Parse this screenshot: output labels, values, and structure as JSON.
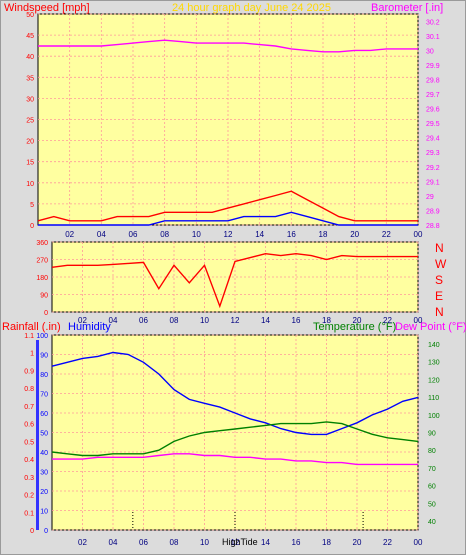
{
  "header": {
    "left_label": "Windspeed [mph]",
    "title": "24 hour graph day   June 24 2025",
    "right_label": "Barometer [.in]"
  },
  "direction_labels": [
    "N",
    "W",
    "S",
    "E",
    "N"
  ],
  "bottom_header": {
    "rain_label": "Rainfall (.in)",
    "humidity_label": "Humidity",
    "temp_label": "Temperature (°F)",
    "dew_label": "Dew Point (°F)"
  },
  "markers": {
    "high_tide_label": "HighTide"
  },
  "colors": {
    "plot_bg": "#ffffa0",
    "frame_bg": "#dcdcdc",
    "grid": "#ff9a9a",
    "wind": "#ff0000",
    "gust_blue": "#0000ff",
    "gust_green": "#00a000",
    "barometer": "#ff00ff",
    "direction": "#ff0000",
    "humidity": "#0000ff",
    "temperature": "#008000",
    "dew_point": "#ff00ff",
    "title": "#ffd800",
    "axis_text": "#ff0000"
  },
  "chart_data": [
    {
      "type": "line",
      "title": "24 hour graph day   June 24 2025",
      "x_ticks": [
        "02",
        "04",
        "06",
        "08",
        "10",
        "12",
        "14",
        "16",
        "18",
        "20",
        "22",
        "00"
      ],
      "xlim": [
        0,
        24
      ],
      "grid": true,
      "y_left": {
        "label": "Windspeed [mph]",
        "ticks": [
          "0",
          "5",
          "10",
          "15",
          "20",
          "25",
          "30",
          "35",
          "40",
          "45",
          "50"
        ],
        "ylim": [
          0,
          50
        ]
      },
      "y_right": {
        "label": "Barometer [.in]",
        "ticks": [
          "28.8",
          "28.9",
          "29",
          "29.1",
          "29.2",
          "29.3",
          "29.4",
          "29.5",
          "29.6",
          "29.7",
          "29.8",
          "29.9",
          "30",
          "30.1",
          "30.2"
        ],
        "ylim": [
          28.8,
          30.25
        ]
      },
      "series": [
        {
          "name": "Barometer",
          "axis": "right",
          "x": [
            0,
            1,
            2,
            3,
            4,
            5,
            6,
            7,
            8,
            9,
            10,
            11,
            12,
            13,
            14,
            15,
            16,
            17,
            18,
            19,
            20,
            21,
            22,
            23,
            24
          ],
          "y": [
            30.03,
            30.03,
            30.03,
            30.03,
            30.03,
            30.04,
            30.05,
            30.06,
            30.07,
            30.06,
            30.05,
            30.05,
            30.05,
            30.05,
            30.04,
            30.03,
            30.01,
            30.0,
            29.99,
            29.99,
            30.0,
            30.0,
            30.01,
            30.01,
            30.01
          ]
        },
        {
          "name": "Wind gust",
          "axis": "left",
          "x": [
            0,
            1,
            2,
            3,
            4,
            5,
            6,
            7,
            8,
            9,
            10,
            11,
            12,
            13,
            14,
            15,
            16,
            17,
            18,
            19,
            20,
            21,
            22,
            23,
            24
          ],
          "y": [
            1,
            2,
            1,
            1,
            1,
            2,
            2,
            2,
            3,
            3,
            3,
            3,
            4,
            5,
            6,
            7,
            8,
            6,
            4,
            2,
            1,
            1,
            1,
            1,
            1
          ]
        },
        {
          "name": "Wind speed",
          "axis": "left",
          "x": [
            0,
            1,
            2,
            3,
            4,
            5,
            6,
            7,
            8,
            9,
            10,
            11,
            12,
            13,
            14,
            15,
            16,
            17,
            18,
            19,
            20,
            21,
            22,
            23,
            24
          ],
          "y": [
            0,
            0,
            0,
            0,
            0,
            0,
            0,
            0,
            1,
            1,
            1,
            1,
            1,
            2,
            2,
            2,
            3,
            2,
            1,
            0,
            0,
            0,
            0,
            0,
            0
          ]
        }
      ]
    },
    {
      "type": "line",
      "x_ticks": [
        "02",
        "04",
        "06",
        "08",
        "10",
        "12",
        "14",
        "16",
        "18",
        "20",
        "22",
        "00"
      ],
      "xlim": [
        0,
        24
      ],
      "grid": true,
      "y_left": {
        "ticks": [
          "0",
          "90",
          "180",
          "270",
          "360"
        ],
        "ylim": [
          0,
          360
        ]
      },
      "series": [
        {
          "name": "Wind direction",
          "x": [
            0,
            1,
            2,
            3,
            4,
            5,
            6,
            7,
            8,
            9,
            10,
            11,
            12,
            13,
            14,
            15,
            16,
            17,
            18,
            19,
            20,
            21,
            22,
            23,
            24
          ],
          "y": [
            230,
            240,
            240,
            240,
            245,
            250,
            255,
            120,
            240,
            150,
            240,
            30,
            260,
            280,
            300,
            290,
            300,
            290,
            270,
            290,
            285,
            285,
            285,
            285,
            285
          ]
        }
      ]
    },
    {
      "type": "line",
      "x_ticks": [
        "02",
        "04",
        "06",
        "08",
        "10",
        "12",
        "14",
        "16",
        "18",
        "20",
        "22",
        "00"
      ],
      "xlim": [
        0,
        24
      ],
      "grid": true,
      "y_rain": {
        "label": "Rainfall (.in)",
        "ticks": [
          "0",
          "0.1",
          "0.2",
          "0.3",
          "0.4",
          "0.5",
          "0.6",
          "0.7",
          "0.8",
          "0.9",
          "1",
          "1.1"
        ],
        "ylim": [
          0,
          1.1
        ]
      },
      "y_humidity": {
        "label": "Humidity",
        "ticks": [
          "0",
          "10",
          "20",
          "30",
          "40",
          "50",
          "60",
          "70",
          "80",
          "90",
          "100"
        ],
        "ylim": [
          0,
          100
        ]
      },
      "y_temperature": {
        "label": "Temperature (°F)",
        "ticks": [
          "40",
          "50",
          "60",
          "70",
          "80",
          "90",
          "100",
          "110",
          "120",
          "130",
          "140"
        ],
        "ylim": [
          35,
          145
        ]
      },
      "series": [
        {
          "name": "Humidity",
          "axis": "humidity",
          "x": [
            0,
            1,
            2,
            3,
            4,
            5,
            6,
            7,
            8,
            9,
            10,
            11,
            12,
            13,
            14,
            15,
            16,
            17,
            18,
            19,
            20,
            21,
            22,
            23,
            24
          ],
          "y": [
            84,
            86,
            88,
            89,
            91,
            90,
            86,
            80,
            72,
            67,
            65,
            63,
            60,
            57,
            55,
            52,
            50,
            49,
            49,
            52,
            55,
            59,
            62,
            66,
            68
          ]
        },
        {
          "name": "Temperature",
          "axis": "temperature",
          "x": [
            0,
            1,
            2,
            3,
            4,
            5,
            6,
            7,
            8,
            9,
            10,
            11,
            12,
            13,
            14,
            15,
            16,
            17,
            18,
            19,
            20,
            21,
            22,
            23,
            24
          ],
          "y": [
            79,
            78,
            77,
            77,
            78,
            78,
            78,
            80,
            85,
            88,
            90,
            91,
            92,
            93,
            94,
            95,
            95,
            95,
            96,
            95,
            92,
            89,
            87,
            86,
            85
          ]
        },
        {
          "name": "Dew Point",
          "axis": "temperature",
          "x": [
            0,
            1,
            2,
            3,
            4,
            5,
            6,
            7,
            8,
            9,
            10,
            11,
            12,
            13,
            14,
            15,
            16,
            17,
            18,
            19,
            20,
            21,
            22,
            23,
            24
          ],
          "y": [
            75,
            75,
            75,
            76,
            76,
            76,
            76,
            77,
            78,
            78,
            77,
            77,
            76,
            76,
            75,
            75,
            74,
            74,
            73,
            73,
            72,
            72,
            72,
            72,
            72
          ]
        }
      ],
      "tide_markers": [
        5.3,
        12.0,
        20.4
      ]
    }
  ]
}
